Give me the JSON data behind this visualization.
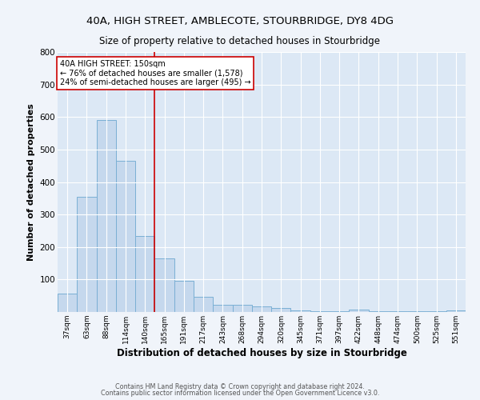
{
  "title_line1": "40A, HIGH STREET, AMBLECOTE, STOURBRIDGE, DY8 4DG",
  "title_line2": "Size of property relative to detached houses in Stourbridge",
  "xlabel": "Distribution of detached houses by size in Stourbridge",
  "ylabel": "Number of detached properties",
  "bar_labels": [
    "37sqm",
    "63sqm",
    "88sqm",
    "114sqm",
    "140sqm",
    "165sqm",
    "191sqm",
    "217sqm",
    "243sqm",
    "268sqm",
    "294sqm",
    "320sqm",
    "345sqm",
    "371sqm",
    "397sqm",
    "422sqm",
    "448sqm",
    "474sqm",
    "500sqm",
    "525sqm",
    "551sqm"
  ],
  "bar_values": [
    57,
    355,
    590,
    465,
    235,
    165,
    95,
    48,
    22,
    21,
    18,
    13,
    4,
    3,
    3,
    8,
    2,
    2,
    2,
    2,
    6
  ],
  "bar_color": "#c5d8ed",
  "bar_edge_color": "#7aafd4",
  "background_color": "#dce8f5",
  "fig_background_color": "#f0f4fa",
  "grid_color": "#ffffff",
  "vline_x": 4.5,
  "vline_color": "#cc0000",
  "annotation_text": "40A HIGH STREET: 150sqm\n← 76% of detached houses are smaller (1,578)\n24% of semi-detached houses are larger (495) →",
  "annotation_box_color": "#ffffff",
  "annotation_box_edge": "#cc0000",
  "ylim": [
    0,
    800
  ],
  "yticks": [
    0,
    100,
    200,
    300,
    400,
    500,
    600,
    700,
    800
  ],
  "footer_line1": "Contains HM Land Registry data © Crown copyright and database right 2024.",
  "footer_line2": "Contains public sector information licensed under the Open Government Licence v3.0."
}
